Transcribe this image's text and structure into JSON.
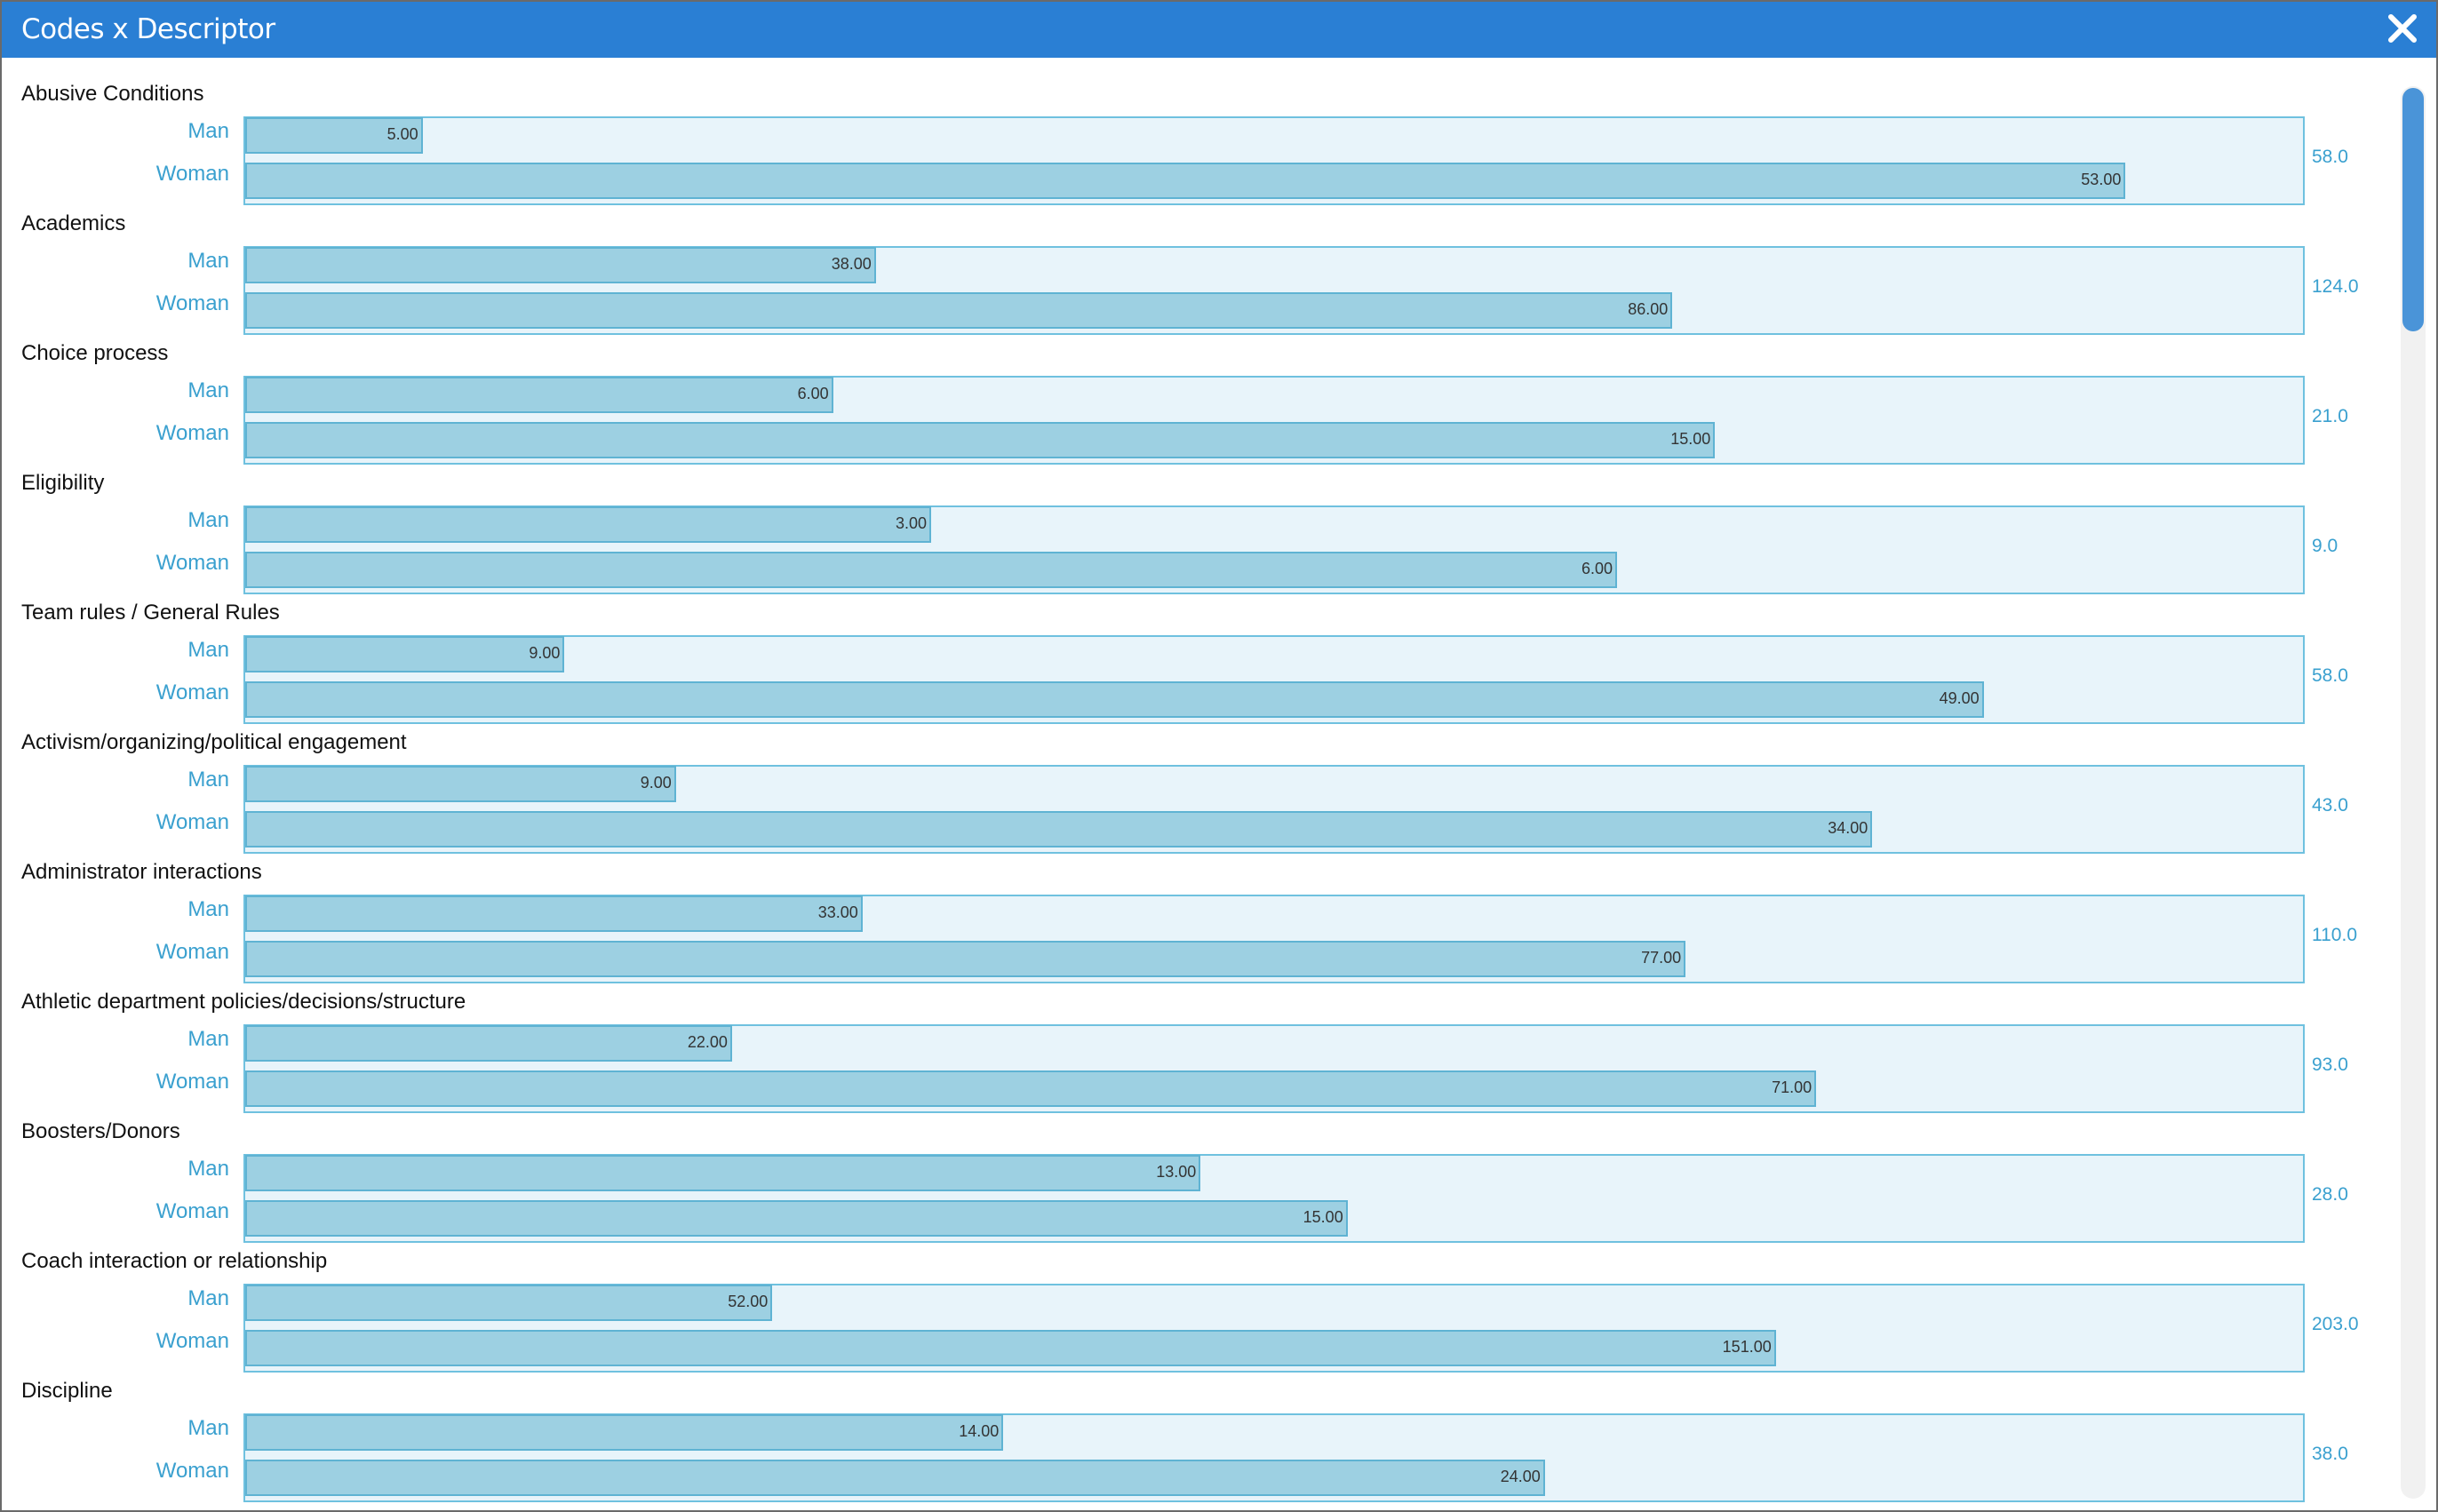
{
  "window": {
    "title": "Codes x Descriptor"
  },
  "colors": {
    "titlebar": "#2a7fd4",
    "bar_fill": "#9dd0e2",
    "bar_border": "#5fb3d3",
    "frame_fill": "#e8f4fa",
    "category_text": "#3aa0cf",
    "scroll_thumb": "#4a94d8"
  },
  "icons": {
    "close": "close-icon"
  },
  "chart_data": {
    "type": "bar",
    "orientation": "horizontal",
    "categories": [
      "Man",
      "Woman"
    ],
    "groups": [
      {
        "label": "Abusive Conditions",
        "total": "58.0",
        "values": [
          5,
          53
        ],
        "value_labels": [
          "5.00",
          "53.00"
        ]
      },
      {
        "label": "Academics",
        "total": "124.0",
        "values": [
          38,
          86
        ],
        "value_labels": [
          "38.00",
          "86.00"
        ]
      },
      {
        "label": "Choice process",
        "total": "21.0",
        "values": [
          6,
          15
        ],
        "value_labels": [
          "6.00",
          "15.00"
        ]
      },
      {
        "label": "Eligibility",
        "total": "9.0",
        "values": [
          3,
          6
        ],
        "value_labels": [
          "3.00",
          "6.00"
        ]
      },
      {
        "label": "Team rules / General Rules",
        "total": "58.0",
        "values": [
          9,
          49
        ],
        "value_labels": [
          "9.00",
          "49.00"
        ]
      },
      {
        "label": "Activism/organizing/political engagement",
        "total": "43.0",
        "values": [
          9,
          34
        ],
        "value_labels": [
          "9.00",
          "34.00"
        ]
      },
      {
        "label": "Administrator interactions",
        "total": "110.0",
        "values": [
          33,
          77
        ],
        "value_labels": [
          "33.00",
          "77.00"
        ]
      },
      {
        "label": "Athletic department policies/decisions/structure",
        "total": "93.0",
        "values": [
          22,
          71
        ],
        "value_labels": [
          "22.00",
          "71.00"
        ]
      },
      {
        "label": "Boosters/Donors",
        "total": "28.0",
        "values": [
          13,
          15
        ],
        "value_labels": [
          "13.00",
          "15.00"
        ]
      },
      {
        "label": "Coach interaction or relationship",
        "total": "203.0",
        "values": [
          52,
          151
        ],
        "value_labels": [
          "52.00",
          "151.00"
        ]
      },
      {
        "label": "Discipline",
        "total": "38.0",
        "values": [
          14,
          24
        ],
        "value_labels": [
          "14.00",
          "24.00"
        ]
      }
    ],
    "grid": false,
    "legend": "none"
  }
}
